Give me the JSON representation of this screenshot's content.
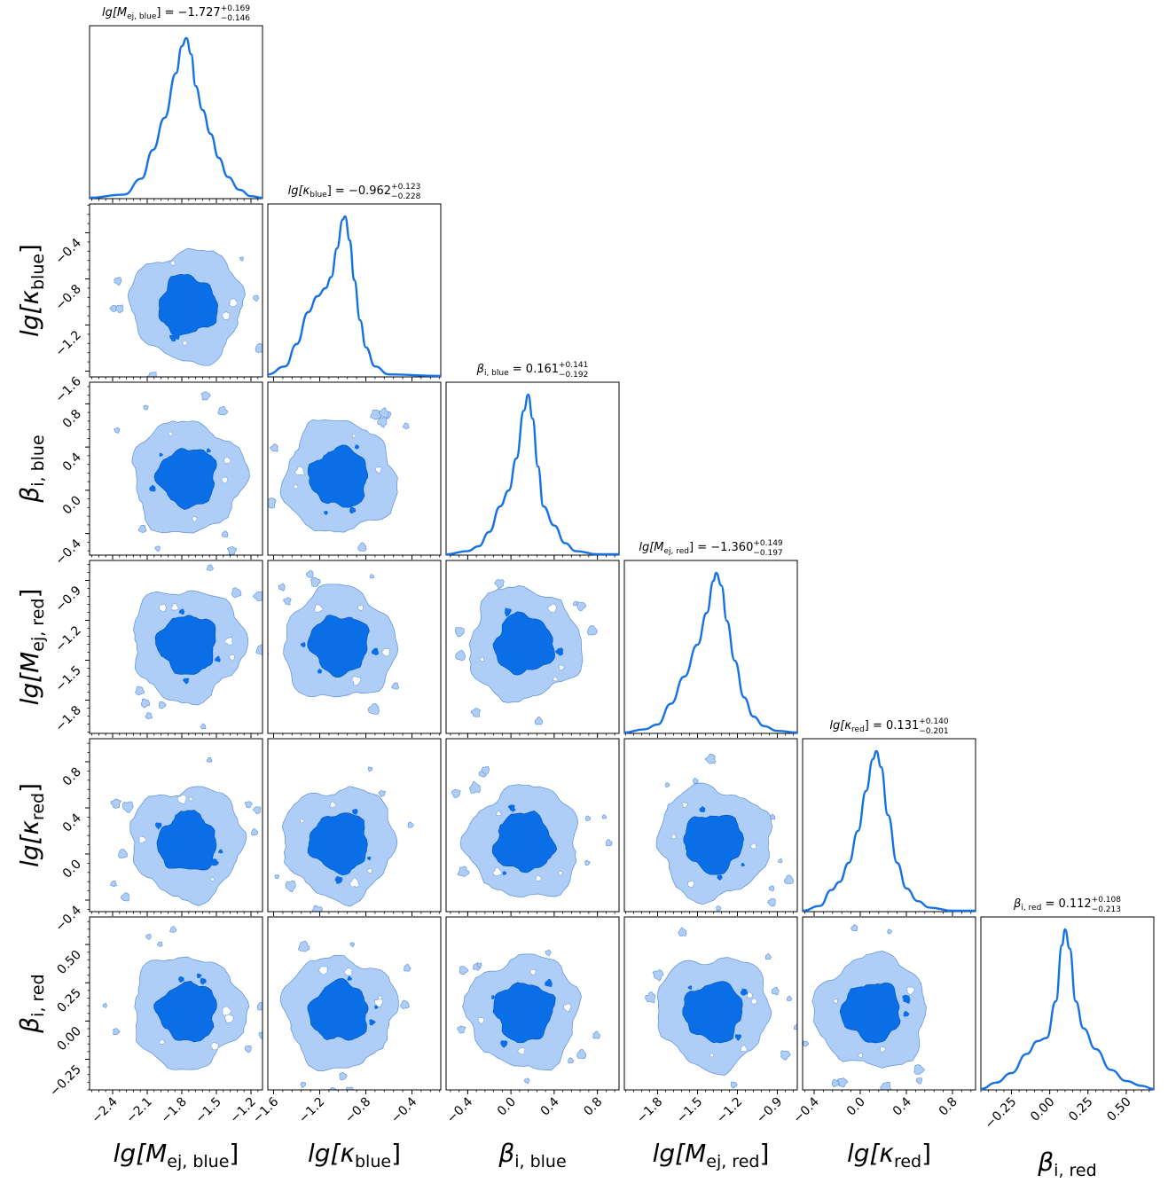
{
  "chart_data": {
    "type": "corner",
    "title": "",
    "params": [
      {
        "key": "lgMej_blue",
        "label_main": "lg[M",
        "label_sub": "ej, blue",
        "label_tail": "]",
        "title_value": "−1.727",
        "title_plus": "+0.169",
        "title_minus": "−0.146",
        "range": [
          -2.6,
          -1.1
        ],
        "ticks": [
          -2.4,
          -2.1,
          -1.8,
          -1.5,
          -1.2
        ],
        "tick_labels": [
          "−2.4",
          "−2.1",
          "−1.8",
          "−1.5",
          "−1.2"
        ],
        "center": -1.75,
        "sigma": 0.15
      },
      {
        "key": "lgkappa_blue",
        "label_main": "lg[κ",
        "label_sub": "blue",
        "label_tail": "]",
        "title_value": "−0.962",
        "title_plus": "+0.123",
        "title_minus": "−0.228",
        "range": [
          -1.65,
          -0.15
        ],
        "ticks": [
          -1.6,
          -1.2,
          -0.8,
          -0.4
        ],
        "tick_labels": [
          "−1.6",
          "−1.2",
          "−0.8",
          "−0.4"
        ],
        "center": -1.03,
        "sigma": 0.16
      },
      {
        "key": "beta_i_blue",
        "label_main": "β",
        "label_sub": "i, blue",
        "label_tail": "",
        "title_value": "0.161",
        "title_plus": "+0.141",
        "title_minus": "−0.192",
        "range": [
          -0.6,
          1.0
        ],
        "ticks": [
          -0.4,
          0.0,
          0.4,
          0.8
        ],
        "tick_labels": [
          "−0.4",
          "0.0",
          "0.4",
          "0.8"
        ],
        "center": 0.12,
        "sigma": 0.17
      },
      {
        "key": "lgMej_red",
        "label_main": "lg[M",
        "label_sub": "ej, red",
        "label_tail": "]",
        "title_value": "−1.360",
        "title_plus": "+0.149",
        "title_minus": "−0.197",
        "range": [
          -2.05,
          -0.75
        ],
        "ticks": [
          -1.8,
          -1.5,
          -1.2,
          -0.9
        ],
        "tick_labels": [
          "−1.8",
          "−1.5",
          "−1.2",
          "−0.9"
        ],
        "center": -1.38,
        "sigma": 0.15
      },
      {
        "key": "lgkappa_red",
        "label_main": "lg[κ",
        "label_sub": "red",
        "label_tail": "]",
        "title_value": "0.131",
        "title_plus": "+0.140",
        "title_minus": "−0.201",
        "range": [
          -0.5,
          1.0
        ],
        "ticks": [
          -0.4,
          0.0,
          0.4,
          0.8
        ],
        "tick_labels": [
          "−0.4",
          "0.0",
          "0.4",
          "0.8"
        ],
        "center": 0.1,
        "sigma": 0.16
      },
      {
        "key": "beta_i_red",
        "label_main": "β",
        "label_sub": "i, red",
        "label_tail": "",
        "title_value": "0.112",
        "title_plus": "+0.108",
        "title_minus": "−0.213",
        "range": [
          -0.45,
          0.68
        ],
        "ticks": [
          -0.25,
          0.0,
          0.25,
          0.5
        ],
        "tick_labels": [
          "−0.25",
          "0.00",
          "0.25",
          "0.50"
        ],
        "center": 0.06,
        "sigma": 0.14
      }
    ],
    "diag_curves": [
      [
        [
          -2.6,
          0.0
        ],
        [
          -2.3,
          0.02
        ],
        [
          -2.15,
          0.12
        ],
        [
          -2.05,
          0.3
        ],
        [
          -1.95,
          0.5
        ],
        [
          -1.85,
          0.78
        ],
        [
          -1.8,
          0.95
        ],
        [
          -1.76,
          1.0
        ],
        [
          -1.72,
          0.9
        ],
        [
          -1.68,
          0.7
        ],
        [
          -1.62,
          0.55
        ],
        [
          -1.55,
          0.4
        ],
        [
          -1.48,
          0.25
        ],
        [
          -1.4,
          0.13
        ],
        [
          -1.3,
          0.05
        ],
        [
          -1.2,
          0.01
        ],
        [
          -1.1,
          0.0
        ]
      ],
      [
        [
          -1.65,
          0.01
        ],
        [
          -1.5,
          0.06
        ],
        [
          -1.4,
          0.2
        ],
        [
          -1.3,
          0.4
        ],
        [
          -1.22,
          0.5
        ],
        [
          -1.15,
          0.55
        ],
        [
          -1.1,
          0.62
        ],
        [
          -1.05,
          0.8
        ],
        [
          -1.0,
          0.98
        ],
        [
          -0.98,
          1.0
        ],
        [
          -0.94,
          0.85
        ],
        [
          -0.9,
          0.6
        ],
        [
          -0.85,
          0.35
        ],
        [
          -0.8,
          0.18
        ],
        [
          -0.72,
          0.06
        ],
        [
          -0.6,
          0.01
        ],
        [
          -0.15,
          0.0
        ]
      ],
      [
        [
          -0.6,
          0.0
        ],
        [
          -0.4,
          0.02
        ],
        [
          -0.3,
          0.05
        ],
        [
          -0.2,
          0.14
        ],
        [
          -0.1,
          0.3
        ],
        [
          -0.02,
          0.4
        ],
        [
          0.05,
          0.6
        ],
        [
          0.12,
          0.9
        ],
        [
          0.16,
          1.0
        ],
        [
          0.2,
          0.85
        ],
        [
          0.25,
          0.55
        ],
        [
          0.3,
          0.3
        ],
        [
          0.4,
          0.18
        ],
        [
          0.5,
          0.07
        ],
        [
          0.6,
          0.02
        ],
        [
          0.8,
          0.0
        ],
        [
          1.0,
          0.0
        ]
      ],
      [
        [
          -2.05,
          0.0
        ],
        [
          -1.9,
          0.02
        ],
        [
          -1.8,
          0.05
        ],
        [
          -1.7,
          0.18
        ],
        [
          -1.6,
          0.35
        ],
        [
          -1.5,
          0.55
        ],
        [
          -1.43,
          0.75
        ],
        [
          -1.38,
          0.95
        ],
        [
          -1.36,
          1.0
        ],
        [
          -1.32,
          0.92
        ],
        [
          -1.28,
          0.7
        ],
        [
          -1.22,
          0.45
        ],
        [
          -1.15,
          0.22
        ],
        [
          -1.08,
          0.1
        ],
        [
          -1.0,
          0.04
        ],
        [
          -0.9,
          0.01
        ],
        [
          -0.75,
          0.0
        ]
      ],
      [
        [
          -0.5,
          0.0
        ],
        [
          -0.35,
          0.03
        ],
        [
          -0.25,
          0.13
        ],
        [
          -0.18,
          0.18
        ],
        [
          -0.1,
          0.3
        ],
        [
          -0.02,
          0.5
        ],
        [
          0.05,
          0.75
        ],
        [
          0.11,
          0.95
        ],
        [
          0.14,
          1.0
        ],
        [
          0.18,
          0.9
        ],
        [
          0.24,
          0.6
        ],
        [
          0.32,
          0.3
        ],
        [
          0.4,
          0.14
        ],
        [
          0.5,
          0.06
        ],
        [
          0.6,
          0.02
        ],
        [
          0.8,
          0.0
        ],
        [
          1.0,
          0.0
        ]
      ],
      [
        [
          -0.45,
          0.0
        ],
        [
          -0.35,
          0.04
        ],
        [
          -0.25,
          0.1
        ],
        [
          -0.15,
          0.22
        ],
        [
          -0.08,
          0.3
        ],
        [
          -0.02,
          0.32
        ],
        [
          0.04,
          0.55
        ],
        [
          0.08,
          0.9
        ],
        [
          0.1,
          1.0
        ],
        [
          0.13,
          0.88
        ],
        [
          0.17,
          0.55
        ],
        [
          0.22,
          0.38
        ],
        [
          0.3,
          0.25
        ],
        [
          0.4,
          0.12
        ],
        [
          0.5,
          0.05
        ],
        [
          0.6,
          0.02
        ],
        [
          0.68,
          0.0
        ]
      ]
    ],
    "contour_levels": [
      "68%",
      "95%"
    ],
    "colors": {
      "line": "#1672e3",
      "inner": "#0a6ee6",
      "outer": "#aecdf7",
      "frame": "#000000"
    }
  }
}
